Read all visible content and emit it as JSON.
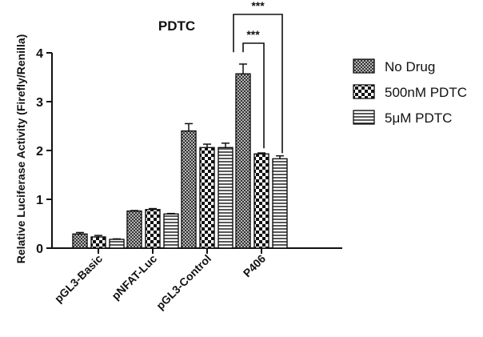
{
  "chart_data": {
    "type": "bar",
    "title": "PDTC",
    "xlabel": "",
    "ylabel": "Relative Luciferase Activity (Firefly/Renilla)",
    "ylim": [
      0,
      4
    ],
    "yticks": [
      "0",
      "1",
      "2",
      "3",
      "4"
    ],
    "categories": [
      "pGL3-Basic",
      "pNFAT-Luc",
      "pGL3-Control",
      "P406"
    ],
    "series": [
      {
        "name": "No Drug",
        "pattern": "dense-crosshatch",
        "values": [
          0.29,
          0.76,
          2.4,
          3.57
        ],
        "errors": [
          0.03,
          0.01,
          0.15,
          0.2
        ]
      },
      {
        "name": "500nM PDTC",
        "pattern": "checkerboard",
        "values": [
          0.23,
          0.79,
          2.06,
          1.93
        ],
        "errors": [
          0.03,
          0.02,
          0.07,
          0.02
        ]
      },
      {
        "name": "5μM PDTC",
        "pattern": "horizontal-lines",
        "values": [
          0.18,
          0.7,
          2.06,
          1.83
        ],
        "errors": [
          0.01,
          0.01,
          0.09,
          0.06
        ]
      }
    ],
    "significance": [
      {
        "label": "***",
        "from_series": "No Drug",
        "to_series": "500nM PDTC",
        "category": "P406"
      },
      {
        "label": "***",
        "from_series": "No Drug",
        "to_series": "5μM PDTC",
        "category": "P406"
      }
    ],
    "legend_position": "right",
    "grid": false
  }
}
